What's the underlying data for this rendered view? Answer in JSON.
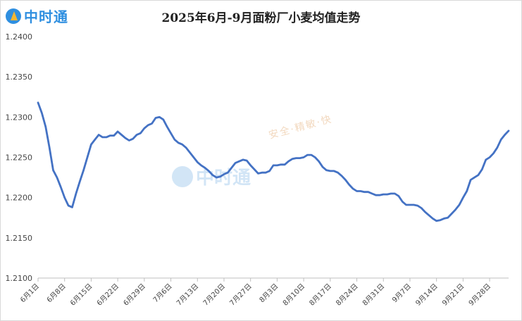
{
  "header": {
    "logo_text": "中时通",
    "title": "2025年6月-9月面粉厂小麦均值走势"
  },
  "watermark": {
    "logo_text": "中时通",
    "slogan": "安全·精敏·快"
  },
  "chart_data": {
    "type": "line",
    "title": "2025年6月-9月面粉厂小麦均值走势",
    "xlabel": "",
    "ylabel": "",
    "ylim": [
      1.21,
      1.24
    ],
    "yticks": [
      "1.2400",
      "1.2350",
      "1.2300",
      "1.2250",
      "1.2200",
      "1.2150",
      "1.2100"
    ],
    "grid": false,
    "legend": "none",
    "line_color": "#4472c4",
    "xtick_labels": [
      "6月1日",
      "6月8日",
      "6月15日",
      "6月22日",
      "6月29日",
      "7月6日",
      "7月13日",
      "7月20日",
      "7月27日",
      "8月3日",
      "8月10日",
      "8月17日",
      "8月24日",
      "8月31日",
      "9月7日",
      "9月14日",
      "9月21日",
      "9月28日"
    ],
    "x_start": "6月1日",
    "series": [
      {
        "values": [
          1.2318,
          1.2305,
          1.2288,
          1.2262,
          1.2234,
          1.2225,
          1.2213,
          1.22,
          1.219,
          1.2188,
          1.2205,
          1.222,
          1.2234,
          1.225,
          1.2266,
          1.2272,
          1.2278,
          1.2275,
          1.2275,
          1.2277,
          1.2277,
          1.2282,
          1.2278,
          1.2274,
          1.2271,
          1.2273,
          1.2278,
          1.228,
          1.2286,
          1.229,
          1.2292,
          1.2299,
          1.23,
          1.2297,
          1.2288,
          1.228,
          1.2272,
          1.2268,
          1.2266,
          1.2262,
          1.2256,
          1.225,
          1.2244,
          1.224,
          1.2237,
          1.2233,
          1.2228,
          1.2225,
          1.2226,
          1.2229,
          1.2231,
          1.2237,
          1.2243,
          1.2245,
          1.2247,
          1.2246,
          1.224,
          1.2235,
          1.223,
          1.2231,
          1.2231,
          1.2233,
          1.224,
          1.224,
          1.2241,
          1.2241,
          1.2245,
          1.2248,
          1.2249,
          1.2249,
          1.225,
          1.2253,
          1.2253,
          1.225,
          1.2245,
          1.2238,
          1.2234,
          1.2233,
          1.2233,
          1.2231,
          1.2227,
          1.2222,
          1.2216,
          1.2211,
          1.2208,
          1.2208,
          1.2207,
          1.2207,
          1.2205,
          1.2203,
          1.2203,
          1.2204,
          1.2204,
          1.2205,
          1.2205,
          1.2202,
          1.2195,
          1.2191,
          1.2191,
          1.2191,
          1.219,
          1.2187,
          1.2182,
          1.2178,
          1.2174,
          1.2171,
          1.2172,
          1.2174,
          1.2175,
          1.218,
          1.2185,
          1.2191,
          1.22,
          1.2208,
          1.2222,
          1.2225,
          1.2228,
          1.2235,
          1.2247,
          1.225,
          1.2255,
          1.2262,
          1.2272,
          1.2278,
          1.2283
        ]
      }
    ]
  }
}
